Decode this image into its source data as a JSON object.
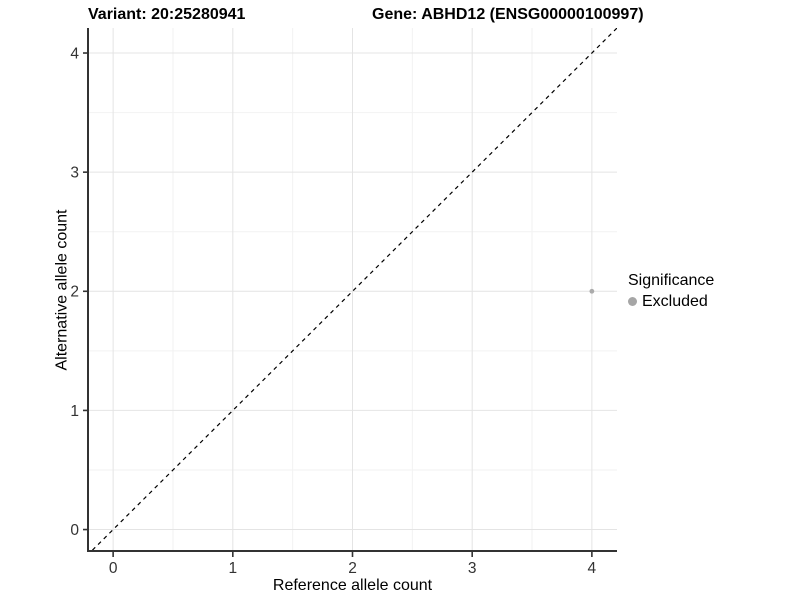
{
  "header": {
    "variant_title": "Variant: 20:25280941",
    "gene_title": "Gene: ABHD12 (ENSG00000100997)"
  },
  "chart_data": {
    "type": "scatter",
    "xlabel": "Reference allele count",
    "ylabel": "Alternative allele count",
    "xlim": [
      -0.21,
      4.21
    ],
    "ylim": [
      -0.18,
      4.21
    ],
    "xticks": [
      0,
      1,
      2,
      3,
      4
    ],
    "yticks": [
      0,
      1,
      2,
      3,
      4
    ],
    "minor_grid_step": 0.5,
    "grid": true,
    "series": [
      {
        "name": "Excluded",
        "color": "#ababab",
        "points": [
          {
            "x": 4,
            "y": 2
          }
        ]
      }
    ],
    "reference_line": {
      "kind": "identity",
      "style": "dashed",
      "color": "#000000"
    },
    "legend": {
      "title": "Significance",
      "position": "right",
      "items": [
        {
          "label": "Excluded",
          "color": "#a6a6a6"
        }
      ]
    },
    "colors": {
      "major_grid": "#e4e4e4",
      "minor_grid": "#f2f2f2",
      "axis_line": "#333333",
      "tick_text": "#333333"
    }
  }
}
